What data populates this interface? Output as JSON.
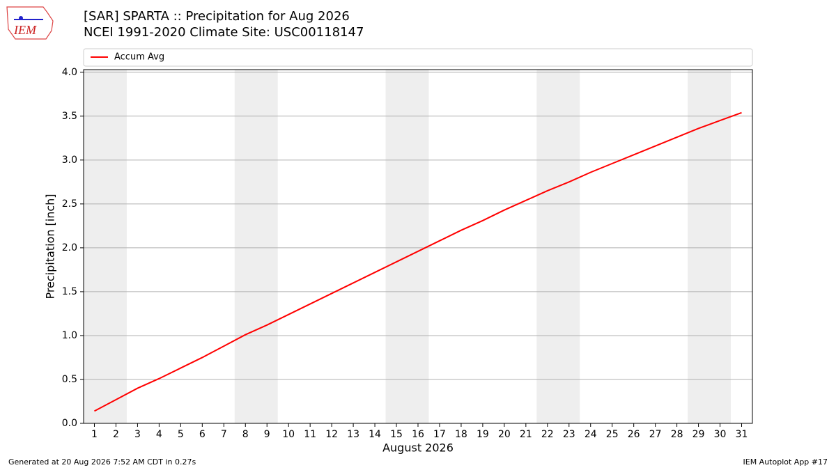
{
  "chart_data": {
    "type": "line",
    "title": "[SAR] SPARTA :: Precipitation for Aug 2026",
    "subtitle": "NCEI 1991-2020 Climate Site: USC00118147",
    "xlabel": "August 2026",
    "ylabel": "Precipitation [inch]",
    "x": [
      1,
      2,
      3,
      4,
      5,
      6,
      7,
      8,
      9,
      10,
      11,
      12,
      13,
      14,
      15,
      16,
      17,
      18,
      19,
      20,
      21,
      22,
      23,
      24,
      25,
      26,
      27,
      28,
      29,
      30,
      31
    ],
    "series": [
      {
        "name": "Accum Avg",
        "color": "#ff0000",
        "values": [
          0.14,
          0.27,
          0.4,
          0.51,
          0.63,
          0.75,
          0.88,
          1.01,
          1.12,
          1.24,
          1.36,
          1.48,
          1.6,
          1.72,
          1.84,
          1.96,
          2.08,
          2.2,
          2.31,
          2.43,
          2.54,
          2.65,
          2.75,
          2.86,
          2.96,
          3.06,
          3.16,
          3.26,
          3.36,
          3.45,
          3.54
        ]
      }
    ],
    "xlim": [
      0.5,
      31.5
    ],
    "xticks": [
      1,
      2,
      3,
      4,
      5,
      6,
      7,
      8,
      9,
      10,
      11,
      12,
      13,
      14,
      15,
      16,
      17,
      18,
      19,
      20,
      21,
      22,
      23,
      24,
      25,
      26,
      27,
      28,
      29,
      30,
      31
    ],
    "ylim": [
      0,
      4.03
    ],
    "yticks": [
      {
        "value": 0,
        "label": "0.0"
      },
      0.5,
      {
        "value": 1,
        "label": "1.0"
      },
      1.5,
      {
        "value": 2,
        "label": "2.0"
      },
      2.5,
      {
        "value": 3,
        "label": "3.0"
      },
      3.5,
      {
        "value": 4,
        "label": "4.0"
      }
    ],
    "shaded_spans": [
      [
        0.5,
        2.5
      ],
      [
        7.5,
        9.5
      ],
      [
        14.5,
        16.5
      ],
      [
        21.5,
        23.5
      ],
      [
        28.5,
        30.5
      ]
    ],
    "shade_color": "#eeeeee",
    "grid": true,
    "legend": "top"
  },
  "logo_text": "IEM",
  "footer_left": "Generated at 20 Aug 2026 7:52 AM CDT in 0.27s",
  "footer_right": "IEM Autoplot App #17"
}
